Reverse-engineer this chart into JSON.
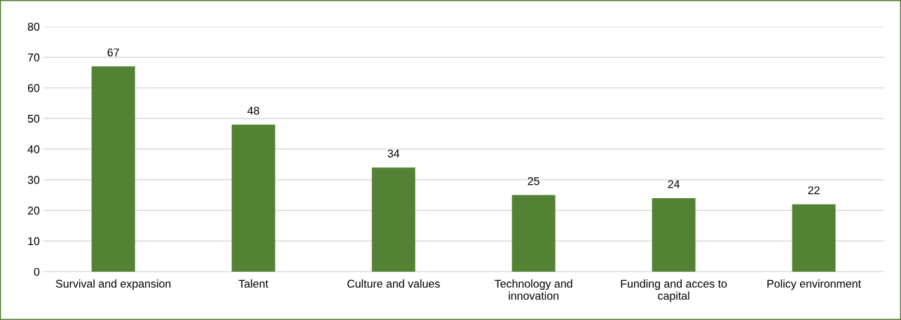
{
  "chart_data": {
    "type": "bar",
    "categories": [
      "Survival and expansion",
      "Talent",
      "Culture and values",
      "Technology and innovation",
      "Funding and acces to capital",
      "Policy environment"
    ],
    "values": [
      67,
      48,
      34,
      25,
      24,
      22
    ],
    "color": "#548235",
    "ylim": [
      0,
      80
    ],
    "yticks": [
      0,
      10,
      20,
      30,
      40,
      50,
      60,
      70,
      80
    ],
    "grid": "y",
    "data_labels": true
  }
}
